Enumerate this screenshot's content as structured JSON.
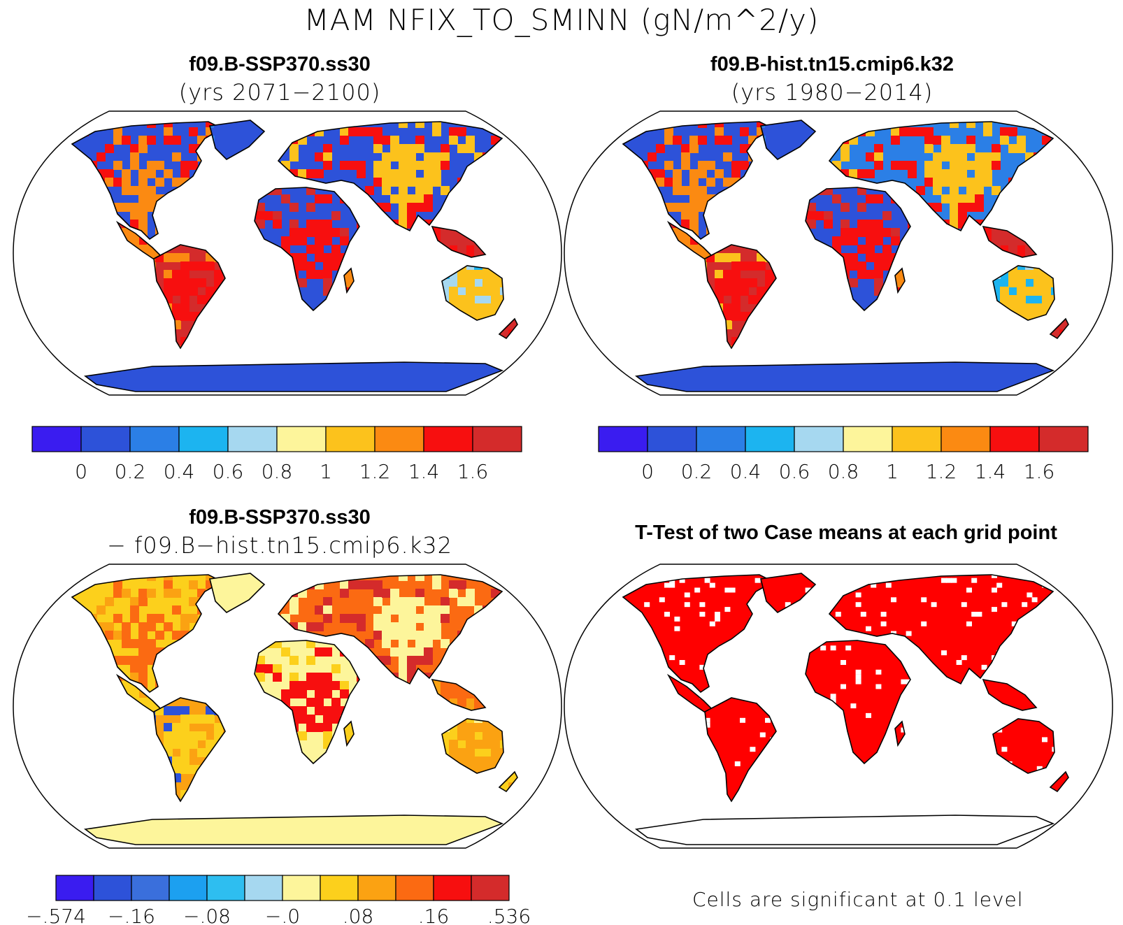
{
  "figure": {
    "title": "MAM NFIX_TO_SMINN (gN/m^2/y)"
  },
  "panels": {
    "tl": {
      "line1": "f09.B-SSP370.ss30",
      "line2": "(yrs 2071−2100)"
    },
    "tr": {
      "line1": "f09.B-hist.tn15.cmip6.k32",
      "line2": "(yrs 1980−2014)"
    },
    "bl": {
      "line1": "f09.B-SSP370.ss30",
      "line2": "− f09.B−hist.tn15.cmip6.k32"
    },
    "br": {
      "line1": "T-Test of two Case means at each grid point"
    }
  },
  "colorbars": {
    "absolute": {
      "colors": [
        "#3a1cf0",
        "#2d52d9",
        "#2b7fe6",
        "#1cb4f0",
        "#a6d8f0",
        "#fdf59b",
        "#fcc21c",
        "#fb8a12",
        "#f70f0f",
        "#d42b2b"
      ],
      "labels": [
        "0",
        "0.2",
        "0.4",
        "0.6",
        "0.8",
        "1",
        "1.2",
        "1.4",
        "1.6"
      ]
    },
    "difference": {
      "colors": [
        "#3a1cf0",
        "#2d52d9",
        "#3a6fdc",
        "#1ca0f0",
        "#2ebef0",
        "#a6d8f0",
        "#fdf59b",
        "#fcd01c",
        "#fba212",
        "#fb6a12",
        "#f70f0f",
        "#d42b2b"
      ],
      "labels": [
        "−.574",
        "−.16",
        "−.08",
        "−.0",
        ".08",
        ".16",
        ".536"
      ]
    }
  },
  "significance_note": "Cells are significant at 0.1 level",
  "legend_colors": {
    "significant": "#ff0000",
    "land_outline": "#000000"
  }
}
